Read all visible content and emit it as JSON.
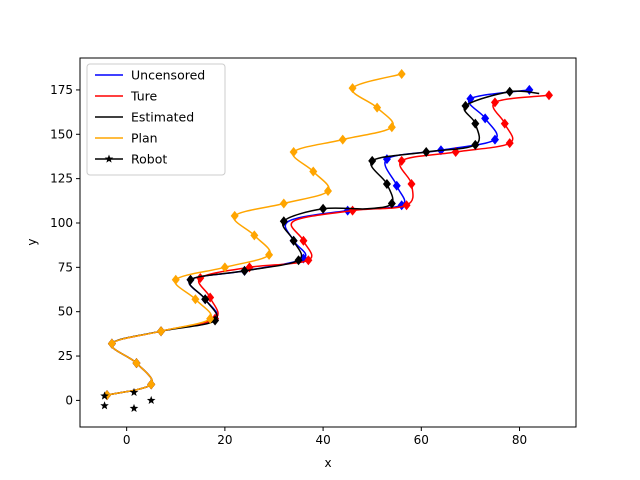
{
  "chart_data": {
    "type": "line",
    "title": "",
    "xlabel": "x",
    "ylabel": "y",
    "xlim": [
      -9.5,
      91.5
    ],
    "ylim": [
      -15,
      193
    ],
    "xticks": [
      0,
      20,
      40,
      60,
      80
    ],
    "yticks": [
      0,
      25,
      50,
      75,
      100,
      125,
      150,
      175
    ],
    "grid": false,
    "legend_position": "top-left",
    "series": [
      {
        "name": "Uncensored",
        "color": "#0000ff",
        "marker": "diamond",
        "points": [
          [
            -4,
            3
          ],
          [
            5,
            9
          ],
          [
            2,
            21
          ],
          [
            -3,
            32
          ],
          [
            7,
            39
          ],
          [
            18,
            46
          ],
          [
            16,
            57
          ],
          [
            13,
            68
          ],
          [
            24,
            73
          ],
          [
            36,
            80
          ],
          [
            34,
            90
          ],
          [
            33,
            101
          ],
          [
            45,
            107
          ],
          [
            56,
            110
          ],
          [
            55,
            121
          ],
          [
            53,
            136
          ],
          [
            64,
            141
          ],
          [
            75,
            147
          ],
          [
            73,
            159
          ],
          [
            70,
            170
          ],
          [
            82,
            175
          ]
        ],
        "markers": [
          [
            -4,
            3
          ],
          [
            5,
            9
          ],
          [
            2,
            21
          ],
          [
            -3,
            32
          ],
          [
            7,
            39
          ],
          [
            18,
            46
          ],
          [
            16,
            57
          ],
          [
            13,
            68
          ],
          [
            24,
            73
          ],
          [
            36,
            80
          ],
          [
            34,
            90
          ],
          [
            45,
            107
          ],
          [
            56,
            110
          ],
          [
            55,
            121
          ],
          [
            53,
            136
          ],
          [
            64,
            141
          ],
          [
            75,
            147
          ],
          [
            73,
            159
          ],
          [
            70,
            170
          ],
          [
            82,
            175
          ]
        ]
      },
      {
        "name": "Ture",
        "color": "#ff0000",
        "marker": "diamond",
        "points": [
          [
            -4,
            3
          ],
          [
            5,
            9
          ],
          [
            2,
            21
          ],
          [
            -3,
            32
          ],
          [
            7,
            39
          ],
          [
            18,
            46
          ],
          [
            17,
            58
          ],
          [
            15,
            69
          ],
          [
            25,
            75
          ],
          [
            37,
            79
          ],
          [
            36,
            90
          ],
          [
            34,
            101
          ],
          [
            46,
            107
          ],
          [
            57,
            110
          ],
          [
            58,
            122
          ],
          [
            56,
            135
          ],
          [
            67,
            140
          ],
          [
            78,
            145
          ],
          [
            77,
            156
          ],
          [
            75,
            168
          ],
          [
            86,
            172
          ]
        ],
        "markers": [
          [
            -4,
            3
          ],
          [
            5,
            9
          ],
          [
            2,
            21
          ],
          [
            -3,
            32
          ],
          [
            7,
            39
          ],
          [
            18,
            46
          ],
          [
            17,
            58
          ],
          [
            15,
            69
          ],
          [
            25,
            75
          ],
          [
            37,
            79
          ],
          [
            36,
            90
          ],
          [
            46,
            107
          ],
          [
            57,
            110
          ],
          [
            58,
            122
          ],
          [
            56,
            135
          ],
          [
            67,
            140
          ],
          [
            78,
            145
          ],
          [
            77,
            156
          ],
          [
            75,
            168
          ],
          [
            86,
            172
          ]
        ]
      },
      {
        "name": "Estimated",
        "color": "#000000",
        "marker": "diamond",
        "points": [
          [
            -4,
            3
          ],
          [
            5,
            9
          ],
          [
            2,
            21
          ],
          [
            -3,
            32
          ],
          [
            7,
            39
          ],
          [
            18,
            45
          ],
          [
            16,
            57
          ],
          [
            13,
            68
          ],
          [
            24,
            73
          ],
          [
            35,
            79
          ],
          [
            34,
            90
          ],
          [
            32,
            101
          ],
          [
            40,
            108
          ],
          [
            49,
            108
          ],
          [
            54,
            111
          ],
          [
            53,
            122
          ],
          [
            50,
            135
          ],
          [
            61,
            140
          ],
          [
            71,
            144
          ],
          [
            71,
            156
          ],
          [
            69,
            166
          ],
          [
            78,
            174
          ],
          [
            84,
            173
          ]
        ],
        "markers": [
          [
            -4,
            3
          ],
          [
            5,
            9
          ],
          [
            2,
            21
          ],
          [
            -3,
            32
          ],
          [
            7,
            39
          ],
          [
            18,
            45
          ],
          [
            16,
            57
          ],
          [
            13,
            68
          ],
          [
            24,
            73
          ],
          [
            35,
            79
          ],
          [
            34,
            90
          ],
          [
            32,
            101
          ],
          [
            40,
            108
          ],
          [
            54,
            111
          ],
          [
            53,
            122
          ],
          [
            50,
            135
          ],
          [
            61,
            140
          ],
          [
            71,
            144
          ],
          [
            71,
            156
          ],
          [
            69,
            166
          ],
          [
            78,
            174
          ]
        ]
      },
      {
        "name": "Plan",
        "color": "#ffa500",
        "marker": "diamond",
        "points": [
          [
            -4,
            3
          ],
          [
            5,
            9
          ],
          [
            2,
            21
          ],
          [
            -3,
            32
          ],
          [
            7,
            39
          ],
          [
            17,
            46
          ],
          [
            14,
            57
          ],
          [
            10,
            68
          ],
          [
            20,
            75
          ],
          [
            29,
            82
          ],
          [
            26,
            93
          ],
          [
            22,
            104
          ],
          [
            32,
            111
          ],
          [
            41,
            118
          ],
          [
            38,
            129
          ],
          [
            34,
            140
          ],
          [
            44,
            147
          ],
          [
            54,
            154
          ],
          [
            51,
            165
          ],
          [
            46,
            176
          ],
          [
            56,
            184
          ]
        ],
        "markers": [
          [
            -4,
            3
          ],
          [
            5,
            9
          ],
          [
            2,
            21
          ],
          [
            -3,
            32
          ],
          [
            7,
            39
          ],
          [
            17,
            46
          ],
          [
            14,
            57
          ],
          [
            10,
            68
          ],
          [
            20,
            75
          ],
          [
            29,
            82
          ],
          [
            26,
            93
          ],
          [
            22,
            104
          ],
          [
            32,
            111
          ],
          [
            41,
            118
          ],
          [
            38,
            129
          ],
          [
            34,
            140
          ],
          [
            44,
            147
          ],
          [
            54,
            154
          ],
          [
            51,
            165
          ],
          [
            46,
            176
          ],
          [
            56,
            184
          ]
        ]
      },
      {
        "name": "Robot",
        "color": "#000000",
        "marker": "star",
        "points": [],
        "markers": [
          [
            -4.5,
            2.5
          ],
          [
            -4.5,
            -3
          ],
          [
            1.5,
            4.5
          ],
          [
            1.5,
            -4.5
          ],
          [
            5,
            0
          ]
        ]
      }
    ]
  }
}
